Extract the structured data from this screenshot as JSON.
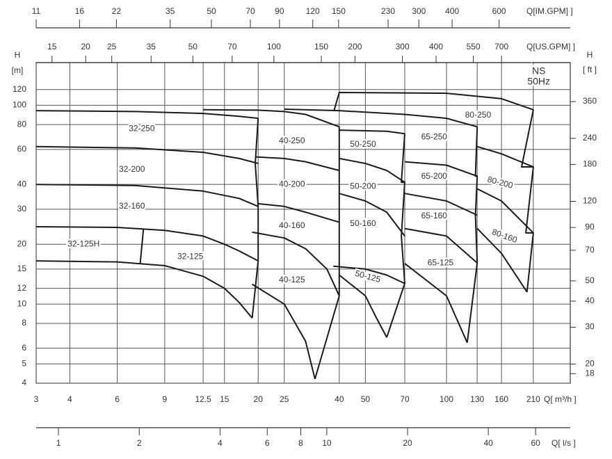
{
  "chart_data": {
    "type": "line",
    "xscale": "log",
    "yscale": "log",
    "grid": true,
    "xlabel": "Q[ m³/h ]",
    "xlim": [
      3,
      288
    ],
    "xticks": [
      3,
      4,
      6,
      9,
      12.5,
      15,
      20,
      25,
      40,
      50,
      70,
      100,
      130,
      160,
      210
    ],
    "ylabel": "H",
    "yunit": "[m]",
    "ylim": [
      4,
      164
    ],
    "yticks": [
      4,
      5,
      6,
      8,
      10,
      12,
      15,
      20,
      30,
      40,
      60,
      80,
      100,
      120
    ],
    "y2label": "H",
    "y2unit": "[ ft ]",
    "y2lim": [
      16.2,
      553
    ],
    "y2ticks": [
      18,
      20,
      30,
      40,
      50,
      70,
      90,
      120,
      180,
      240,
      360
    ],
    "x2axes": [
      {
        "label": "Q[IM.GPM] ]",
        "lim": [
          11,
          1110
        ],
        "ticks": [
          11,
          16,
          22,
          35,
          50,
          70,
          90,
          120,
          150,
          230,
          300,
          400,
          600
        ]
      },
      {
        "label": "Q[US.GPM] ]",
        "lim": [
          13.1,
          1260
        ],
        "ticks": [
          15,
          20,
          25,
          35,
          50,
          70,
          100,
          150,
          200,
          300,
          400,
          550,
          700
        ]
      },
      {
        "label": "Q[ l/s ]",
        "lim": [
          0.826,
          80.8
        ],
        "ticks": [
          1,
          2,
          4,
          6,
          8,
          10,
          20,
          40,
          60
        ]
      }
    ],
    "series": [
      {
        "color": "#1a1a1a",
        "x": [
          3,
          7,
          12.5,
          17,
          20
        ],
        "values": [
          94,
          93,
          91,
          88,
          86
        ]
      },
      {
        "color": "#1a1a1a",
        "x": [
          3,
          7,
          12.5,
          17,
          20
        ],
        "values": [
          62,
          61,
          58,
          54,
          51
        ]
      },
      {
        "color": "#1a1a1a",
        "x": [
          3,
          7,
          12.5,
          17,
          20
        ],
        "values": [
          40,
          39.5,
          37,
          34,
          31
        ]
      },
      {
        "color": "#1a1a1a",
        "x": [
          3,
          6,
          9,
          12.5,
          15,
          17,
          20
        ],
        "values": [
          24.5,
          24.3,
          23.5,
          22,
          20,
          18.5,
          16.5
        ]
      },
      {
        "color": "#1a1a1a",
        "x": [
          3,
          6,
          9,
          12.5,
          15,
          17,
          19
        ],
        "values": [
          16.5,
          16.3,
          15.6,
          13.8,
          12,
          10.2,
          8.5
        ]
      },
      {
        "color": "#1a1a1a",
        "x": [
          7.5,
          7.3
        ],
        "values": [
          23.8,
          16
        ]
      },
      {
        "color": "#1a1a1a",
        "x": [
          20,
          19.5,
          20,
          20,
          19
        ],
        "values": [
          86,
          51,
          31,
          16.5,
          8.5
        ]
      },
      {
        "color": "#1a1a1a",
        "x": [
          12.5,
          20,
          25,
          30,
          40
        ],
        "values": [
          95,
          94.5,
          93,
          90,
          78
        ]
      },
      {
        "color": "#1a1a1a",
        "x": [
          19.5,
          25,
          30,
          40
        ],
        "values": [
          55,
          54,
          52,
          47
        ]
      },
      {
        "color": "#1a1a1a",
        "x": [
          20,
          25,
          30,
          40
        ],
        "values": [
          32,
          31,
          29,
          25.8
        ]
      },
      {
        "color": "#1a1a1a",
        "x": [
          19,
          25,
          30,
          36,
          40
        ],
        "values": [
          23,
          21.5,
          19,
          15,
          11
        ]
      },
      {
        "color": "#1a1a1a",
        "x": [
          19,
          25,
          30,
          32.5
        ],
        "values": [
          12.6,
          10,
          6.5,
          4.2
        ]
      },
      {
        "color": "#1a1a1a",
        "x": [
          40,
          40,
          40,
          40,
          32.5
        ],
        "values": [
          78,
          47,
          25.8,
          11,
          4.2
        ]
      },
      {
        "color": "#1a1a1a",
        "x": [
          25,
          40,
          70,
          100,
          130
        ],
        "values": [
          95.6,
          94,
          90,
          86,
          78
        ]
      },
      {
        "color": "#1a1a1a",
        "x": [
          40,
          50,
          60,
          70
        ],
        "values": [
          54,
          51,
          47,
          41
        ]
      },
      {
        "color": "#1a1a1a",
        "x": [
          40,
          50,
          60,
          70
        ],
        "values": [
          36,
          33,
          29,
          22
        ]
      },
      {
        "color": "#1a1a1a",
        "x": [
          38,
          50,
          60,
          70
        ],
        "values": [
          15.5,
          15,
          14,
          12.7
        ]
      },
      {
        "color": "#1a1a1a",
        "x": [
          40,
          50,
          55,
          60
        ],
        "values": [
          14,
          11,
          8.5,
          6.8
        ]
      },
      {
        "color": "#1a1a1a",
        "x": [
          40,
          50,
          60,
          70
        ],
        "values": [
          75,
          74.5,
          74,
          72
        ]
      },
      {
        "color": "#1a1a1a",
        "x": [
          70,
          68,
          70,
          68,
          70,
          60
        ],
        "values": [
          72,
          41,
          41,
          22,
          12.7,
          6.8
        ]
      },
      {
        "color": "#1a1a1a",
        "x": [
          70,
          100,
          130
        ],
        "values": [
          52,
          50,
          44
        ]
      },
      {
        "color": "#1a1a1a",
        "x": [
          70,
          100,
          130
        ],
        "values": [
          36,
          33,
          28
        ]
      },
      {
        "color": "#1a1a1a",
        "x": [
          70,
          100,
          130
        ],
        "values": [
          24,
          22,
          16.1
        ]
      },
      {
        "color": "#1a1a1a",
        "x": [
          70,
          100,
          119.4
        ],
        "values": [
          16,
          11,
          6.4
        ]
      },
      {
        "color": "#1a1a1a",
        "x": [
          130,
          128,
          130,
          128,
          130,
          119.4
        ],
        "values": [
          78,
          44,
          44,
          28,
          16.1,
          6.4
        ]
      },
      {
        "color": "#1a1a1a",
        "x": [
          38.2,
          40,
          100,
          160,
          210
        ],
        "values": [
          93.4,
          116,
          115,
          108,
          95
        ]
      },
      {
        "color": "#1a1a1a",
        "x": [
          130,
          160,
          210
        ],
        "values": [
          62,
          57,
          49
        ]
      },
      {
        "color": "#1a1a1a",
        "x": [
          130,
          160,
          210
        ],
        "values": [
          38,
          33,
          22.8
        ]
      },
      {
        "color": "#1a1a1a",
        "x": [
          130,
          160,
          199
        ],
        "values": [
          24,
          18,
          11.5
        ]
      },
      {
        "color": "#1a1a1a",
        "x": [
          210,
          190,
          210,
          197,
          210,
          199
        ],
        "values": [
          95,
          49,
          49,
          22.8,
          22.8,
          11.5
        ]
      }
    ],
    "annotations": [
      {
        "text": "32-250",
        "x": 7.4,
        "y": 76
      },
      {
        "text": "32-200",
        "x": 6.8,
        "y": 47.5
      },
      {
        "text": "32-160",
        "x": 6.8,
        "y": 31
      },
      {
        "text": "32-125H",
        "x": 4.5,
        "y": 20
      },
      {
        "text": "32-125",
        "x": 11.2,
        "y": 17.3
      },
      {
        "text": "40-250",
        "x": 26.7,
        "y": 66
      },
      {
        "text": "40-200",
        "x": 26.7,
        "y": 40
      },
      {
        "text": "40-160",
        "x": 26.7,
        "y": 24.7
      },
      {
        "text": "40-125",
        "x": 26.7,
        "y": 13.2
      },
      {
        "text": "50-250",
        "x": 49,
        "y": 63.5
      },
      {
        "text": "50-200",
        "x": 49,
        "y": 39
      },
      {
        "text": "50-160",
        "x": 49,
        "y": 25.3
      },
      {
        "text": "50-125",
        "x": 51,
        "y": 13.7,
        "rotate": 15
      },
      {
        "text": "65-250",
        "x": 90,
        "y": 69
      },
      {
        "text": "65-200",
        "x": 90,
        "y": 43.8
      },
      {
        "text": "65-160",
        "x": 90,
        "y": 27.7
      },
      {
        "text": "65-125",
        "x": 95,
        "y": 16.1
      },
      {
        "text": "80-250",
        "x": 131,
        "y": 89
      },
      {
        "text": "80-200",
        "x": 158,
        "y": 40.7,
        "rotate": 15
      },
      {
        "text": "80-160",
        "x": 164,
        "y": 21.9,
        "rotate": 20
      },
      {
        "text": "NS",
        "x": 220,
        "y": 148
      },
      {
        "text": "50Hz",
        "x": 220,
        "y": 131
      }
    ]
  }
}
